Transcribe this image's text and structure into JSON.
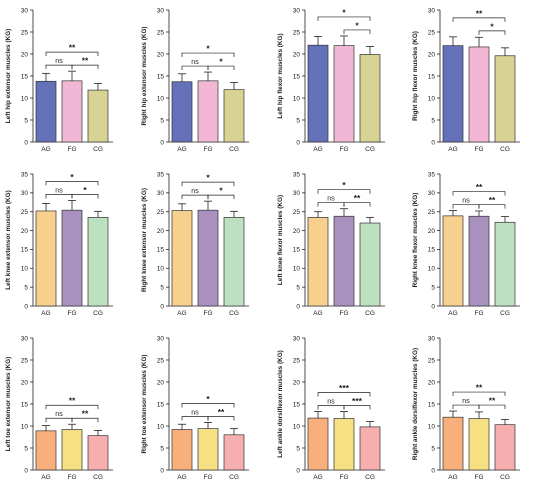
{
  "chart_data": [
    {
      "type": "bar",
      "ylabel": "Left hip extensor muscles (KG)",
      "categories": [
        "AG",
        "FG",
        "CG"
      ],
      "values": [
        13.8,
        13.9,
        11.8
      ],
      "errors": [
        1.8,
        2.2,
        1.5
      ],
      "colors": [
        "#6470b8",
        "#f3b7d6",
        "#d8d294"
      ],
      "ylim": [
        0,
        30
      ],
      "yticks": [
        0,
        5,
        10,
        15,
        20,
        25,
        30
      ],
      "comparisons": [
        {
          "from": 0,
          "to": 1,
          "label": "ns"
        },
        {
          "from": 1,
          "to": 2,
          "label": "**"
        },
        {
          "from": 0,
          "to": 2,
          "label": "**"
        }
      ]
    },
    {
      "type": "bar",
      "ylabel": "Right hip extensor muscles (KG)",
      "categories": [
        "AG",
        "FG",
        "CG"
      ],
      "values": [
        13.7,
        13.9,
        11.9
      ],
      "errors": [
        1.8,
        2.0,
        1.6
      ],
      "colors": [
        "#6470b8",
        "#f3b7d6",
        "#d8d294"
      ],
      "ylim": [
        0,
        30
      ],
      "yticks": [
        0,
        5,
        10,
        15,
        20,
        25,
        30
      ],
      "comparisons": [
        {
          "from": 0,
          "to": 1,
          "label": "ns"
        },
        {
          "from": 1,
          "to": 2,
          "label": "*"
        },
        {
          "from": 0,
          "to": 2,
          "label": "*"
        }
      ]
    },
    {
      "type": "bar",
      "ylabel": "Left hip flexor muscles (KG)",
      "categories": [
        "AG",
        "FG",
        "CG"
      ],
      "values": [
        22.0,
        21.9,
        19.9
      ],
      "errors": [
        2.0,
        2.2,
        1.8
      ],
      "colors": [
        "#6470b8",
        "#f3b7d6",
        "#d8d294"
      ],
      "ylim": [
        0,
        30
      ],
      "yticks": [
        0,
        5,
        10,
        15,
        20,
        25,
        30
      ],
      "comparisons": [
        {
          "from": 1,
          "to": 2,
          "label": "*"
        },
        {
          "from": 0,
          "to": 2,
          "label": "*"
        }
      ]
    },
    {
      "type": "bar",
      "ylabel": "Right hip flexor muscles (KG)",
      "categories": [
        "AG",
        "FG",
        "CG"
      ],
      "values": [
        21.9,
        21.6,
        19.6
      ],
      "errors": [
        2.0,
        2.2,
        1.8
      ],
      "colors": [
        "#6470b8",
        "#f3b7d6",
        "#d8d294"
      ],
      "ylim": [
        0,
        30
      ],
      "yticks": [
        0,
        5,
        10,
        15,
        20,
        25,
        30
      ],
      "comparisons": [
        {
          "from": 1,
          "to": 2,
          "label": "*"
        },
        {
          "from": 0,
          "to": 2,
          "label": "**"
        }
      ]
    },
    {
      "type": "bar",
      "ylabel": "Left knee extensor muscles (KG)",
      "categories": [
        "AG",
        "FG",
        "CG"
      ],
      "values": [
        25.2,
        25.4,
        23.5
      ],
      "errors": [
        2.0,
        2.6,
        1.6
      ],
      "colors": [
        "#f7d08e",
        "#a890bf",
        "#bde0c0"
      ],
      "ylim": [
        0,
        35
      ],
      "yticks": [
        0,
        5,
        10,
        15,
        20,
        25,
        30,
        35
      ],
      "comparisons": [
        {
          "from": 0,
          "to": 1,
          "label": "ns"
        },
        {
          "from": 1,
          "to": 2,
          "label": "*"
        },
        {
          "from": 0,
          "to": 2,
          "label": "*"
        }
      ]
    },
    {
      "type": "bar",
      "ylabel": "Right knee extensor muscles (KG)",
      "categories": [
        "AG",
        "FG",
        "CG"
      ],
      "values": [
        25.3,
        25.4,
        23.5
      ],
      "errors": [
        1.8,
        2.4,
        1.6
      ],
      "colors": [
        "#f7d08e",
        "#a890bf",
        "#bde0c0"
      ],
      "ylim": [
        0,
        35
      ],
      "yticks": [
        0,
        5,
        10,
        15,
        20,
        25,
        30,
        35
      ],
      "comparisons": [
        {
          "from": 0,
          "to": 1,
          "label": "ns"
        },
        {
          "from": 1,
          "to": 2,
          "label": "*"
        },
        {
          "from": 0,
          "to": 2,
          "label": "*"
        }
      ]
    },
    {
      "type": "bar",
      "ylabel": "Left knee flexor muscles (KG)",
      "categories": [
        "AG",
        "FG",
        "CG"
      ],
      "values": [
        23.5,
        23.8,
        22.0
      ],
      "errors": [
        1.5,
        2.0,
        1.5
      ],
      "colors": [
        "#f7d08e",
        "#a890bf",
        "#bde0c0"
      ],
      "ylim": [
        0,
        35
      ],
      "yticks": [
        0,
        5,
        10,
        15,
        20,
        25,
        30,
        35
      ],
      "comparisons": [
        {
          "from": 0,
          "to": 1,
          "label": "ns"
        },
        {
          "from": 1,
          "to": 2,
          "label": "**"
        },
        {
          "from": 0,
          "to": 2,
          "label": "*"
        }
      ]
    },
    {
      "type": "bar",
      "ylabel": "Right knee flexor muscles (KG)",
      "categories": [
        "AG",
        "FG",
        "CG"
      ],
      "values": [
        23.9,
        23.8,
        22.2
      ],
      "errors": [
        1.4,
        1.4,
        1.5
      ],
      "colors": [
        "#f7d08e",
        "#a890bf",
        "#bde0c0"
      ],
      "ylim": [
        0,
        35
      ],
      "yticks": [
        0,
        5,
        10,
        15,
        20,
        25,
        30,
        35
      ],
      "comparisons": [
        {
          "from": 0,
          "to": 1,
          "label": "ns"
        },
        {
          "from": 1,
          "to": 2,
          "label": "**"
        },
        {
          "from": 0,
          "to": 2,
          "label": "**"
        }
      ]
    },
    {
      "type": "bar",
      "ylabel": "Left toe extensor muscles (KG)",
      "categories": [
        "AG",
        "FG",
        "CG"
      ],
      "values": [
        8.9,
        9.2,
        7.8
      ],
      "errors": [
        1.2,
        1.2,
        1.2
      ],
      "colors": [
        "#f7b07c",
        "#f7e083",
        "#f6aeae"
      ],
      "ylim": [
        0,
        30
      ],
      "yticks": [
        0,
        5,
        10,
        15,
        20,
        25,
        30
      ],
      "comparisons": [
        {
          "from": 0,
          "to": 1,
          "label": "ns"
        },
        {
          "from": 1,
          "to": 2,
          "label": "**"
        },
        {
          "from": 0,
          "to": 2,
          "label": "**"
        }
      ]
    },
    {
      "type": "bar",
      "ylabel": "Right toe extensor muscles (KG)",
      "categories": [
        "AG",
        "FG",
        "CG"
      ],
      "values": [
        9.2,
        9.4,
        8.0
      ],
      "errors": [
        1.2,
        1.4,
        1.4
      ],
      "colors": [
        "#f7b07c",
        "#f7e083",
        "#f6aeae"
      ],
      "ylim": [
        0,
        30
      ],
      "yticks": [
        0,
        5,
        10,
        15,
        20,
        25,
        30
      ],
      "comparisons": [
        {
          "from": 0,
          "to": 1,
          "label": "ns"
        },
        {
          "from": 1,
          "to": 2,
          "label": "**"
        },
        {
          "from": 0,
          "to": 2,
          "label": "*"
        }
      ]
    },
    {
      "type": "bar",
      "ylabel": "Left ankle dorsiflexor muscles (KG)",
      "categories": [
        "AG",
        "FG",
        "CG"
      ],
      "values": [
        11.8,
        11.7,
        9.8
      ],
      "errors": [
        1.5,
        1.6,
        1.2
      ],
      "colors": [
        "#f7b07c",
        "#f7e083",
        "#f6aeae"
      ],
      "ylim": [
        0,
        30
      ],
      "yticks": [
        0,
        5,
        10,
        15,
        20,
        25,
        30
      ],
      "comparisons": [
        {
          "from": 0,
          "to": 1,
          "label": "ns"
        },
        {
          "from": 1,
          "to": 2,
          "label": "***"
        },
        {
          "from": 0,
          "to": 2,
          "label": "***"
        }
      ]
    },
    {
      "type": "bar",
      "ylabel": "Right ankle dorsiflexor muscles (KG)",
      "categories": [
        "AG",
        "FG",
        "CG"
      ],
      "values": [
        12.0,
        11.7,
        10.3
      ],
      "errors": [
        1.4,
        1.5,
        1.2
      ],
      "colors": [
        "#f7b07c",
        "#f7e083",
        "#f6aeae"
      ],
      "ylim": [
        0,
        30
      ],
      "yticks": [
        0,
        5,
        10,
        15,
        20,
        25,
        30
      ],
      "comparisons": [
        {
          "from": 0,
          "to": 1,
          "label": "ns"
        },
        {
          "from": 1,
          "to": 2,
          "label": "**"
        },
        {
          "from": 0,
          "to": 2,
          "label": "**"
        }
      ]
    }
  ]
}
